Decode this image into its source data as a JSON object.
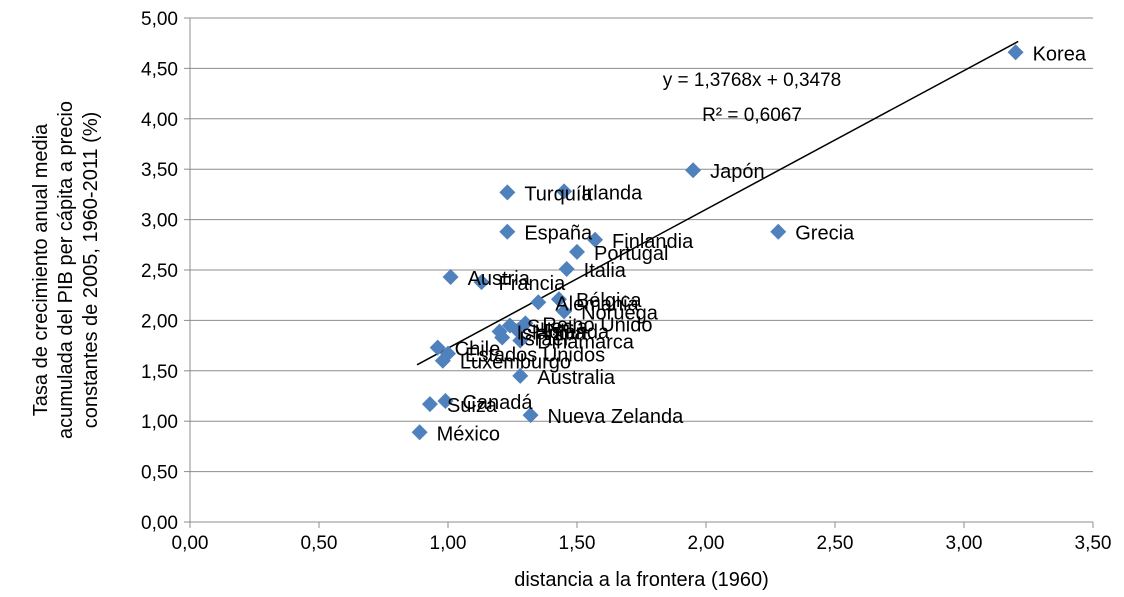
{
  "chart_data": {
    "type": "scatter",
    "xlabel": "distancia a la frontera (1960)",
    "ylabel_lines": [
      "Tasa de crecimiento anual media",
      "acumulada del PIB per cápita a precio",
      "constantes de 2005, 1960-2011 (%)"
    ],
    "xlim": [
      0,
      3.5
    ],
    "ylim": [
      0,
      5
    ],
    "x_ticks": [
      "0,00",
      "0,50",
      "1,00",
      "1,50",
      "2,00",
      "2,50",
      "3,00",
      "3,50"
    ],
    "y_ticks": [
      "0,00",
      "0,50",
      "1,00",
      "1,50",
      "2,00",
      "2,50",
      "3,00",
      "3,50",
      "4,00",
      "4,50",
      "5,00"
    ],
    "grid": "horizontal",
    "marker_color": "#4F81BD",
    "trendline": {
      "slope": 1.3768,
      "intercept": 0.3478,
      "x_range": [
        0.88,
        3.21
      ],
      "equation": "y = 1,3768x + 0,3478",
      "r2": "R² = 0,6067"
    },
    "points": [
      {
        "label": "Korea",
        "x": 3.2,
        "y": 4.66
      },
      {
        "label": "Japón",
        "x": 1.95,
        "y": 3.49
      },
      {
        "label": "Grecia",
        "x": 2.28,
        "y": 2.88
      },
      {
        "label": "Irlanda",
        "x": 1.45,
        "y": 3.28
      },
      {
        "label": "Turquía",
        "x": 1.23,
        "y": 3.27
      },
      {
        "label": "España",
        "x": 1.23,
        "y": 2.88
      },
      {
        "label": "Finlandia",
        "x": 1.57,
        "y": 2.8
      },
      {
        "label": "Portugal",
        "x": 1.5,
        "y": 2.68
      },
      {
        "label": "Italia",
        "x": 1.46,
        "y": 2.51
      },
      {
        "label": "Austria",
        "x": 1.01,
        "y": 2.43
      },
      {
        "label": "Francia",
        "x": 1.13,
        "y": 2.38
      },
      {
        "label": "Bélgica",
        "x": 1.43,
        "y": 2.21
      },
      {
        "label": "Alemania",
        "x": 1.35,
        "y": 2.18
      },
      {
        "label": "Noruega",
        "x": 1.45,
        "y": 2.09
      },
      {
        "label": "Suecia",
        "x": 1.24,
        "y": 1.95
      },
      {
        "label": "Reino Unido",
        "x": 1.3,
        "y": 1.97
      },
      {
        "label": "Holanda",
        "x": 1.27,
        "y": 1.9
      },
      {
        "label": "Islandia",
        "x": 1.2,
        "y": 1.89
      },
      {
        "label": "Israel",
        "x": 1.21,
        "y": 1.83
      },
      {
        "label": "Dinamarca",
        "x": 1.28,
        "y": 1.8
      },
      {
        "label": "Chile",
        "x": 0.96,
        "y": 1.73
      },
      {
        "label": "Estados Unidos",
        "x": 1.0,
        "y": 1.67
      },
      {
        "label": "Luxemburgo",
        "x": 0.98,
        "y": 1.6
      },
      {
        "label": "Australia",
        "x": 1.28,
        "y": 1.45
      },
      {
        "label": "Canadá",
        "x": 0.99,
        "y": 1.2
      },
      {
        "label": "Suiza",
        "x": 0.93,
        "y": 1.17
      },
      {
        "label": "Nueva Zelanda",
        "x": 1.32,
        "y": 1.06
      },
      {
        "label": "México",
        "x": 0.89,
        "y": 0.89
      }
    ]
  }
}
